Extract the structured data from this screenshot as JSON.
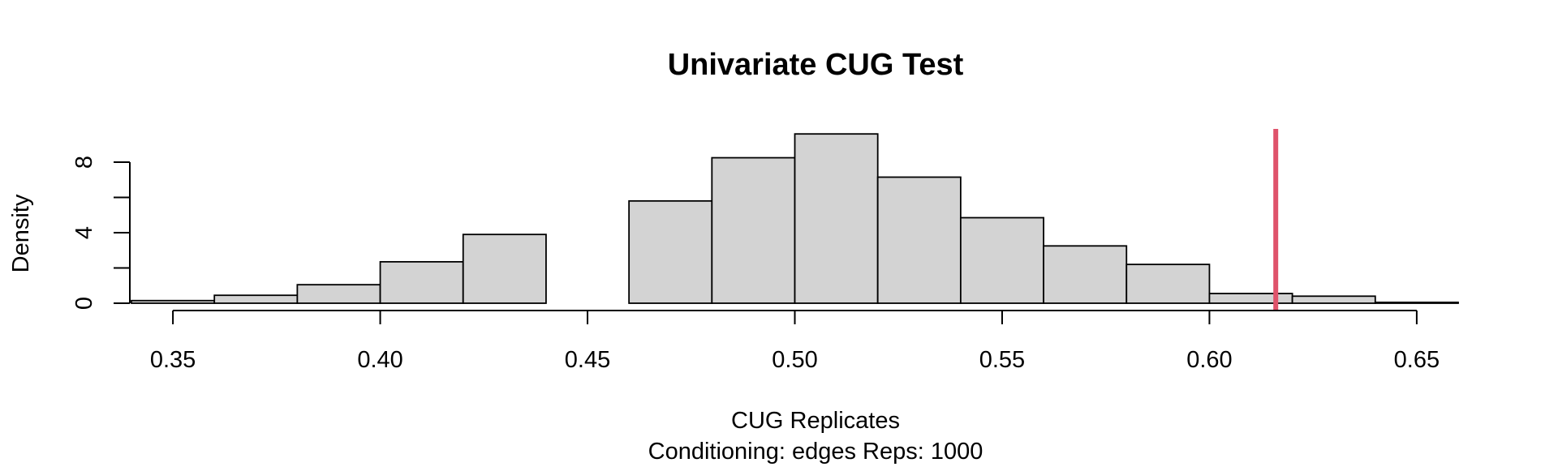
{
  "chart_data": {
    "type": "bar",
    "title": "Univariate CUG Test",
    "xlabel": "CUG Replicates",
    "sub": "Conditioning: edges Reps: 1000",
    "ylabel": "Density",
    "xlim": [
      0.34,
      0.66
    ],
    "ylim": [
      0,
      10
    ],
    "x_ticks": [
      {
        "value": 0.35,
        "label": "0.35"
      },
      {
        "value": 0.4,
        "label": "0.40"
      },
      {
        "value": 0.45,
        "label": "0.45"
      },
      {
        "value": 0.5,
        "label": "0.50"
      },
      {
        "value": 0.55,
        "label": "0.55"
      },
      {
        "value": 0.6,
        "label": "0.60"
      },
      {
        "value": 0.65,
        "label": "0.65"
      }
    ],
    "y_ticks": [
      {
        "value": 0,
        "label": "0"
      },
      {
        "value": 2,
        "label": ""
      },
      {
        "value": 4,
        "label": "4"
      },
      {
        "value": 6,
        "label": ""
      },
      {
        "value": 8,
        "label": "8"
      }
    ],
    "bins": [
      {
        "start": 0.34,
        "end": 0.36,
        "density": 0.15
      },
      {
        "start": 0.36,
        "end": 0.38,
        "density": 0.45
      },
      {
        "start": 0.38,
        "end": 0.4,
        "density": 1.05
      },
      {
        "start": 0.4,
        "end": 0.42,
        "density": 2.35
      },
      {
        "start": 0.42,
        "end": 0.44,
        "density": 3.9
      },
      {
        "start": 0.44,
        "end": 0.46,
        "density": 0.0
      },
      {
        "start": 0.46,
        "end": 0.48,
        "density": 5.8
      },
      {
        "start": 0.48,
        "end": 0.5,
        "density": 8.25
      },
      {
        "start": 0.5,
        "end": 0.52,
        "density": 9.6
      },
      {
        "start": 0.52,
        "end": 0.54,
        "density": 7.15
      },
      {
        "start": 0.54,
        "end": 0.56,
        "density": 4.85
      },
      {
        "start": 0.56,
        "end": 0.58,
        "density": 3.25
      },
      {
        "start": 0.58,
        "end": 0.6,
        "density": 2.2
      },
      {
        "start": 0.6,
        "end": 0.62,
        "density": 0.55
      },
      {
        "start": 0.62,
        "end": 0.64,
        "density": 0.4
      },
      {
        "start": 0.64,
        "end": 0.66,
        "density": 0.05
      }
    ],
    "observed_value": 0.616,
    "colors": {
      "bar_fill": "#d3d3d3",
      "bar_stroke": "#000000",
      "observed_line": "#df536b"
    },
    "grid": false,
    "legend": "none"
  }
}
